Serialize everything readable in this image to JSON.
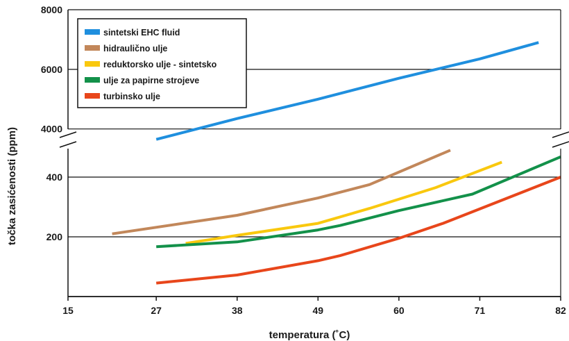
{
  "chart_data": {
    "type": "line",
    "title": "",
    "xlabel": "temperatura (˚C)",
    "ylabel": "točka zasićenosti (ppm)",
    "x_ticks": [
      15,
      27,
      38,
      49,
      60,
      71,
      82
    ],
    "xlim": [
      15,
      82
    ],
    "y_axis_broken": true,
    "y_segments": [
      {
        "range": [
          0,
          500
        ],
        "ticks": [
          "200",
          "400"
        ]
      },
      {
        "range": [
          3900,
          8000
        ],
        "ticks": [
          "4000",
          "6000",
          "8000"
        ]
      }
    ],
    "grid": "horizontal",
    "legend": "top-left",
    "series": [
      {
        "name": "sintetski EHC fluid",
        "color": "#1f8fde",
        "segment": 1,
        "points": [
          [
            27,
            3650
          ],
          [
            38,
            4350
          ],
          [
            49,
            5000
          ],
          [
            60,
            5700
          ],
          [
            71,
            6350
          ],
          [
            79,
            6900
          ]
        ]
      },
      {
        "name": "hidraulično ulje",
        "color": "#c2875a",
        "segment": 0,
        "points": [
          [
            21,
            210
          ],
          [
            38,
            272
          ],
          [
            49,
            330
          ],
          [
            56,
            375
          ],
          [
            67,
            490
          ]
        ]
      },
      {
        "name": "reduktorsko ulje - sintetsko",
        "color": "#f9c80e",
        "segment": 0,
        "points": [
          [
            31,
            178
          ],
          [
            38,
            205
          ],
          [
            49,
            245
          ],
          [
            56,
            295
          ],
          [
            65,
            365
          ],
          [
            74,
            450
          ]
        ]
      },
      {
        "name": "ulje za papirne strojeve",
        "color": "#13914a",
        "segment": 0,
        "points": [
          [
            27,
            167
          ],
          [
            38,
            183
          ],
          [
            49,
            223
          ],
          [
            52,
            238
          ],
          [
            60,
            288
          ],
          [
            70,
            343
          ],
          [
            82,
            468
          ]
        ]
      },
      {
        "name": "turbinsko ulje",
        "color": "#e8461b",
        "segment": 0,
        "points": [
          [
            27,
            45
          ],
          [
            38,
            72
          ],
          [
            49,
            120
          ],
          [
            52,
            137
          ],
          [
            60,
            195
          ],
          [
            66,
            245
          ],
          [
            82,
            400
          ]
        ]
      }
    ]
  }
}
